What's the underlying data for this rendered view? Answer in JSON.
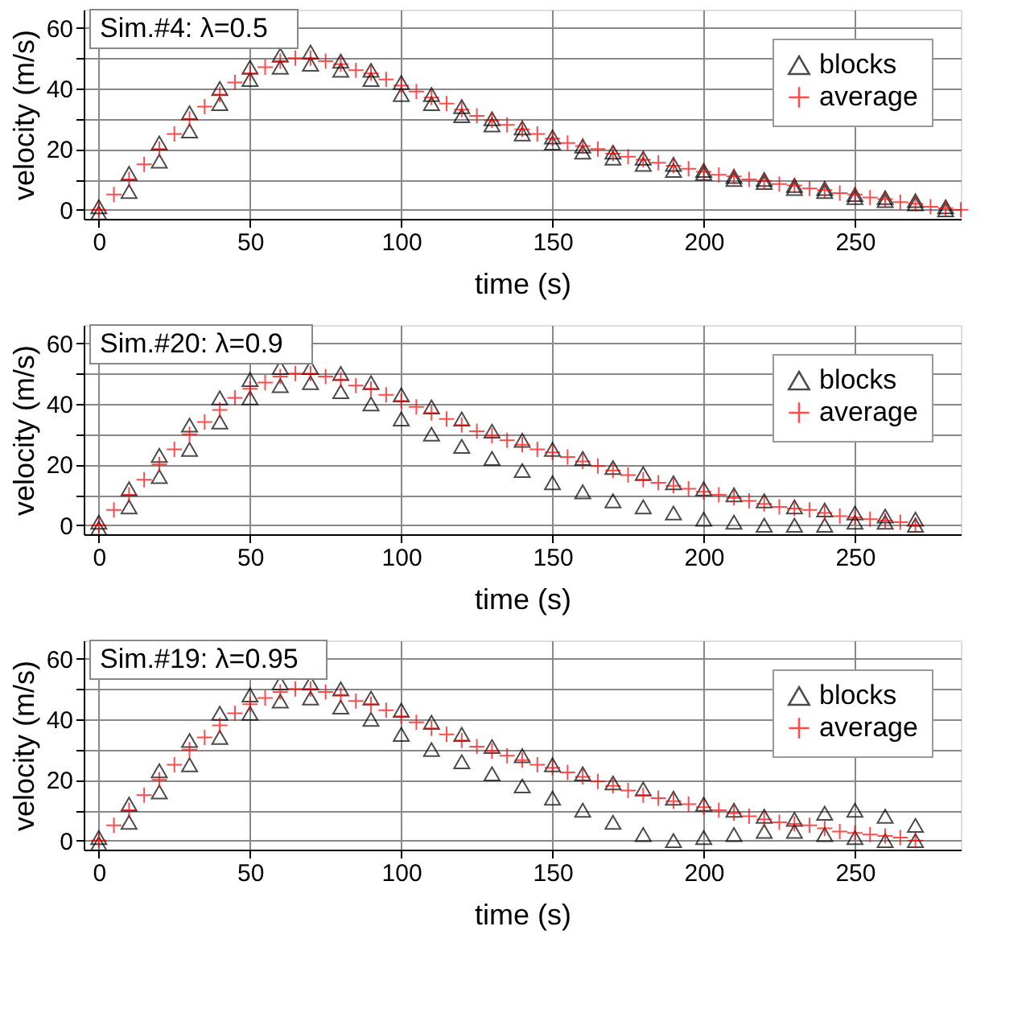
{
  "chart_data": [
    {
      "type": "scatter",
      "title": "Sim.#4: λ=0.5",
      "xlabel": "time (s)",
      "ylabel": "velocity (m/s)",
      "xlim": [
        -5,
        285
      ],
      "ylim": [
        -3,
        66
      ],
      "xticks": [
        0,
        50,
        100,
        150,
        200,
        250
      ],
      "yticks": [
        0,
        {
          "value": 10,
          "label": null
        },
        20,
        {
          "value": 30,
          "label": null
        },
        40,
        {
          "value": 50,
          "label": null
        },
        60
      ],
      "grid": true,
      "legend": "top right",
      "series": [
        {
          "name": "blocks",
          "color": "#000000",
          "marker": "triangle",
          "x": [
            0,
            10,
            20,
            30,
            40,
            50,
            60,
            70,
            80,
            90,
            100,
            110,
            120,
            130,
            140,
            150,
            160,
            170,
            180,
            190,
            200,
            210,
            220,
            230,
            240,
            250,
            260,
            270,
            280,
            0,
            10,
            20,
            30,
            40,
            50,
            60,
            70,
            80,
            90,
            100,
            110,
            120,
            130,
            140,
            150,
            160,
            170,
            180,
            190,
            200,
            210,
            220,
            230,
            240,
            250,
            260,
            270,
            280
          ],
          "values": [
            1,
            12,
            22,
            32,
            40,
            47,
            51,
            52,
            49,
            46,
            42,
            38,
            34,
            30,
            27,
            24,
            21,
            19,
            17,
            15,
            13,
            11,
            10,
            8,
            7,
            5,
            4,
            3,
            1,
            -1,
            6,
            16,
            26,
            35,
            43,
            47,
            48,
            46,
            43,
            38,
            35,
            31,
            28,
            25,
            22,
            19,
            17,
            15,
            13,
            12,
            10,
            9,
            7,
            6,
            4,
            3,
            2,
            0
          ]
        },
        {
          "name": "average",
          "color": "#ff0000",
          "marker": "cross",
          "x": [
            0,
            5,
            10,
            15,
            20,
            25,
            30,
            35,
            40,
            45,
            50,
            55,
            60,
            65,
            70,
            75,
            80,
            85,
            90,
            95,
            100,
            105,
            110,
            115,
            120,
            125,
            130,
            135,
            140,
            145,
            150,
            155,
            160,
            165,
            170,
            175,
            180,
            185,
            190,
            195,
            200,
            205,
            210,
            215,
            220,
            225,
            230,
            235,
            240,
            245,
            250,
            255,
            260,
            265,
            270,
            275,
            280,
            285
          ],
          "values": [
            0,
            5,
            10,
            15,
            20,
            25,
            30,
            34,
            38,
            42,
            45,
            47,
            49,
            50,
            50,
            49,
            48,
            46,
            45,
            43,
            41,
            39,
            37,
            35,
            33,
            31,
            29.5,
            28,
            26.5,
            25,
            23.5,
            22,
            21,
            20,
            18.5,
            17.5,
            16.5,
            15.5,
            14.5,
            13.5,
            12.5,
            11.5,
            11,
            10,
            9.5,
            8.5,
            8,
            7,
            6.5,
            5.5,
            5,
            4,
            3.5,
            2.5,
            2,
            1,
            0.5,
            0
          ]
        }
      ]
    },
    {
      "type": "scatter",
      "title": "Sim.#20: λ=0.9",
      "xlabel": "time (s)",
      "ylabel": "velocity (m/s)",
      "xlim": [
        -5,
        285
      ],
      "ylim": [
        -3,
        66
      ],
      "xticks": [
        0,
        50,
        100,
        150,
        200,
        250
      ],
      "yticks": [
        0,
        {
          "value": 10,
          "label": null
        },
        20,
        {
          "value": 30,
          "label": null
        },
        40,
        {
          "value": 50,
          "label": null
        },
        60
      ],
      "grid": true,
      "legend": "top right",
      "series": [
        {
          "name": "blocks",
          "color": "#000000",
          "marker": "triangle",
          "x": [
            0,
            10,
            20,
            30,
            40,
            50,
            60,
            70,
            80,
            90,
            100,
            110,
            120,
            130,
            140,
            150,
            160,
            170,
            180,
            190,
            200,
            210,
            220,
            230,
            240,
            250,
            260,
            270,
            0,
            10,
            20,
            30,
            40,
            50,
            60,
            70,
            80,
            90,
            100,
            110,
            120,
            130,
            140,
            150,
            160,
            170,
            180,
            190,
            200,
            210,
            220,
            230,
            240,
            250,
            260,
            270
          ],
          "values": [
            1,
            12,
            23,
            33,
            42,
            48,
            52,
            52,
            50,
            47,
            43,
            39,
            35,
            31,
            28,
            25,
            22,
            19,
            17,
            14,
            12,
            10,
            8,
            6,
            5,
            4,
            3,
            2,
            -1,
            6,
            16,
            25,
            34,
            42,
            46,
            47,
            44,
            40,
            35,
            30,
            26,
            22,
            18,
            14,
            11,
            8,
            6,
            4,
            2,
            1,
            0,
            0,
            0,
            1,
            1,
            0
          ]
        },
        {
          "name": "average",
          "color": "#ff0000",
          "marker": "cross",
          "x": [
            0,
            5,
            10,
            15,
            20,
            25,
            30,
            35,
            40,
            45,
            50,
            55,
            60,
            65,
            70,
            75,
            80,
            85,
            90,
            95,
            100,
            105,
            110,
            115,
            120,
            125,
            130,
            135,
            140,
            145,
            150,
            155,
            160,
            165,
            170,
            175,
            180,
            185,
            190,
            195,
            200,
            205,
            210,
            215,
            220,
            225,
            230,
            235,
            240,
            245,
            250,
            255,
            260,
            265,
            270
          ],
          "values": [
            0,
            5,
            10,
            15,
            20,
            25,
            30,
            34,
            38,
            42,
            45,
            47,
            49,
            50,
            50,
            49,
            48,
            46,
            45,
            43,
            41,
            39,
            37,
            35,
            33,
            31,
            29.5,
            28,
            26.5,
            25,
            24,
            22.5,
            21,
            19.5,
            18,
            16.5,
            15,
            14,
            13,
            12,
            11,
            10,
            9,
            8,
            7,
            6,
            5.5,
            5,
            4,
            3,
            2.5,
            2,
            1.5,
            1,
            0
          ]
        }
      ]
    },
    {
      "type": "scatter",
      "title": "Sim.#19: λ=0.95",
      "xlabel": "time (s)",
      "ylabel": "velocity (m/s)",
      "xlim": [
        -5,
        285
      ],
      "ylim": [
        -3,
        66
      ],
      "xticks": [
        0,
        50,
        100,
        150,
        200,
        250
      ],
      "yticks": [
        0,
        {
          "value": 10,
          "label": null
        },
        20,
        {
          "value": 30,
          "label": null
        },
        40,
        {
          "value": 50,
          "label": null
        },
        60
      ],
      "grid": true,
      "legend": "top right",
      "series": [
        {
          "name": "blocks",
          "color": "#000000",
          "marker": "triangle",
          "x": [
            0,
            10,
            20,
            30,
            40,
            50,
            60,
            70,
            80,
            90,
            100,
            110,
            120,
            130,
            140,
            150,
            160,
            170,
            180,
            190,
            200,
            210,
            220,
            230,
            240,
            250,
            260,
            270,
            0,
            10,
            20,
            30,
            40,
            50,
            60,
            70,
            80,
            90,
            100,
            110,
            120,
            130,
            140,
            150,
            160,
            170,
            180,
            190,
            200,
            210,
            220,
            230,
            240,
            250,
            260,
            270
          ],
          "values": [
            1,
            12,
            23,
            33,
            42,
            48,
            52,
            52,
            50,
            47,
            43,
            39,
            35,
            31,
            28,
            25,
            22,
            19,
            17,
            14,
            12,
            10,
            8,
            7,
            9,
            10,
            8,
            5,
            -1,
            6,
            16,
            25,
            34,
            42,
            46,
            47,
            44,
            40,
            35,
            30,
            26,
            22,
            18,
            14,
            10,
            6,
            2,
            0,
            1,
            2,
            3,
            3,
            2,
            1,
            0,
            0
          ]
        },
        {
          "name": "average",
          "color": "#ff0000",
          "marker": "cross",
          "x": [
            0,
            5,
            10,
            15,
            20,
            25,
            30,
            35,
            40,
            45,
            50,
            55,
            60,
            65,
            70,
            75,
            80,
            85,
            90,
            95,
            100,
            105,
            110,
            115,
            120,
            125,
            130,
            135,
            140,
            145,
            150,
            155,
            160,
            165,
            170,
            175,
            180,
            185,
            190,
            195,
            200,
            205,
            210,
            215,
            220,
            225,
            230,
            235,
            240,
            245,
            250,
            255,
            260,
            265,
            270
          ],
          "values": [
            0,
            5,
            10,
            15,
            20,
            25,
            30,
            34,
            38,
            42,
            45,
            47,
            49,
            50,
            50,
            49,
            48,
            46,
            45,
            43,
            41,
            39,
            37,
            35,
            33,
            31,
            29.5,
            28,
            26.5,
            25,
            24,
            22.5,
            21,
            19.5,
            18,
            16.5,
            15,
            14,
            13,
            12,
            11,
            10,
            9,
            8,
            7,
            6,
            5.5,
            5,
            4,
            3,
            2.5,
            2,
            1.5,
            1,
            0
          ]
        }
      ]
    }
  ]
}
